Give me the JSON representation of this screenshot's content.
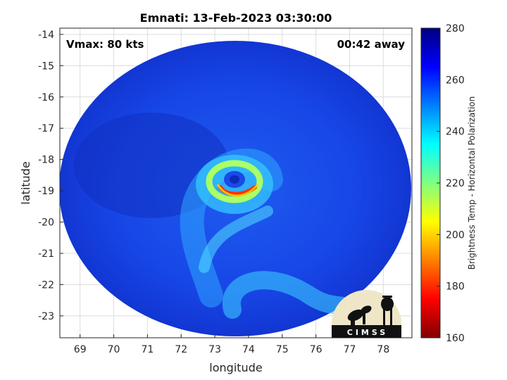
{
  "chart_data": {
    "type": "heatmap",
    "title": "Emnati: 13-Feb-2023 03:30:00",
    "xlabel": "longitude",
    "ylabel": "latitude",
    "xlim": [
      68.4,
      78.85
    ],
    "ylim": [
      -23.7,
      -13.8
    ],
    "xticks": [
      69,
      70,
      71,
      72,
      73,
      74,
      75,
      76,
      77,
      78
    ],
    "yticks": [
      -14,
      -15,
      -16,
      -17,
      -18,
      -19,
      -20,
      -21,
      -22,
      -23
    ],
    "grid": true,
    "annotations": {
      "vmax": "Vmax: 80 kts",
      "time_away": "00:42 away"
    },
    "storm_center": {
      "lon": 73.6,
      "lat": -18.6
    },
    "colorbar": {
      "label": "Brightness Temp - Horizontal Polarization",
      "min": 160,
      "max": 280,
      "ticks": [
        160,
        180,
        200,
        220,
        240,
        260,
        280
      ],
      "colormap": "jet"
    },
    "logo_text": "CIMSS"
  }
}
